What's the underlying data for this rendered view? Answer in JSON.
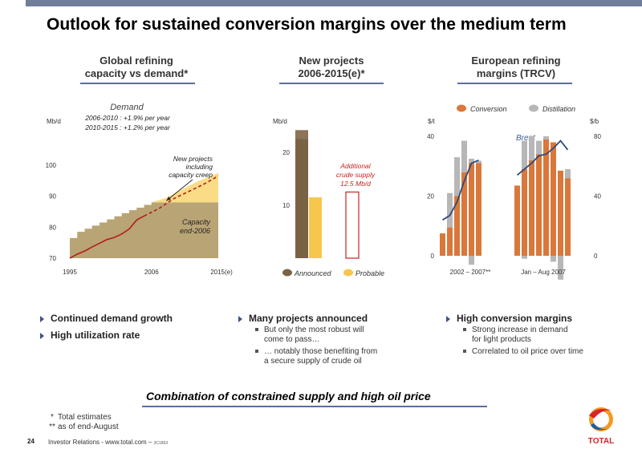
{
  "page": {
    "title": "Outlook for sustained conversion margins over the medium term",
    "page_number": "24",
    "footer": "Investor Relations - www.total.com –",
    "footer_code": "3C1863",
    "logo_text": "TOTAL",
    "accent_color": "#5a6f99"
  },
  "columns": [
    {
      "title_line1": "Global refining",
      "title_line2": "capacity vs demand*"
    },
    {
      "title_line1": "New projects",
      "title_line2": "2006-2015(e)*"
    },
    {
      "title_line1": "European refining",
      "title_line2": "margins (TRCV)"
    }
  ],
  "bullets": {
    "left": [
      "Continued demand growth",
      "High utilization rate"
    ],
    "middle": {
      "heading": "Many projects announced",
      "subs": [
        [
          "But only the most robust will",
          "come to pass…"
        ],
        [
          "… notably those benefiting from",
          "a secure supply of crude oil"
        ]
      ]
    },
    "right": {
      "heading": "High conversion margins",
      "subs": [
        [
          "Strong increase in demand",
          "for light products"
        ],
        [
          "Correlated to oil price over time"
        ]
      ]
    }
  },
  "conclusion": "Combination of constrained supply and high oil price",
  "footnotes": [
    {
      "mark": "*",
      "text": "Total estimates"
    },
    {
      "mark": "**",
      "text": "as of end-August"
    }
  ],
  "chart_data": [
    {
      "type": "area",
      "ylabel": "Mb/d",
      "ylim": [
        70,
        100
      ],
      "yticks": [
        70,
        80,
        90,
        100
      ],
      "xticks": [
        "1995",
        "2006",
        "2015(e)"
      ],
      "capacity_end_2006": 88,
      "annotations": {
        "demand_title": "Demand",
        "demand_line1": "2006-2010 : +1.9% per year",
        "demand_line2": "2010-2015 : +1.2% per year",
        "new_projects": [
          "New projects",
          "including",
          "capacity creep"
        ],
        "capacity": [
          "Capacity",
          "end-2006"
        ]
      },
      "capacity": {
        "x": [
          1995,
          1996,
          1997,
          1998,
          1999,
          2000,
          2001,
          2002,
          2003,
          2004,
          2005,
          2006
        ],
        "values": [
          76.5,
          78.5,
          79.5,
          80.5,
          81.5,
          82.5,
          83.5,
          84.5,
          85.5,
          86.3,
          87.2,
          88.0
        ]
      },
      "capacity_projects": {
        "x": [
          2006,
          2008,
          2010,
          2012,
          2015
        ],
        "values": [
          88.0,
          89.5,
          92.0,
          94.5,
          97.5
        ]
      },
      "demand_actual": {
        "x": [
          1995,
          1996,
          1997,
          1998,
          1999,
          2000,
          2001,
          2002,
          2003,
          2004,
          2005
        ],
        "values": [
          70.0,
          71.3,
          72.3,
          73.6,
          74.8,
          76.0,
          76.7,
          77.8,
          79.4,
          82.3,
          83.6
        ]
      },
      "demand_projection": {
        "x": [
          2005,
          2007,
          2009,
          2011,
          2013,
          2015
        ],
        "values": [
          83.6,
          86.0,
          89.2,
          91.5,
          93.8,
          96.5
        ]
      }
    },
    {
      "type": "bar",
      "ylabel": "Mb/d",
      "ylim": [
        0,
        25
      ],
      "yticks": [
        10,
        20
      ],
      "announced": {
        "base": 22.5,
        "top": 24.2
      },
      "probable": 11.5,
      "additional_supply_label": [
        "Additional",
        "crude supply",
        "12.5 Mb/d"
      ],
      "additional_supply": 12.5,
      "legend": [
        "Announced",
        "Probable"
      ],
      "colors": {
        "announced": "#7a6345",
        "probable": "#f7c64d",
        "additional": "#cc2222"
      }
    },
    {
      "type": "bar",
      "ylabel_left": "$/t",
      "ylabel_right": "$/b",
      "ylim_left": [
        0,
        40
      ],
      "yticks_left": [
        0,
        20,
        40
      ],
      "ylim_right": [
        0,
        80
      ],
      "yticks_right": [
        0,
        40,
        80
      ],
      "xlabels": [
        "2002 – 2007**",
        "Jan – Aug 2007"
      ],
      "legend": [
        "Conversion",
        "Distillation"
      ],
      "line_label": "Brent",
      "colors": {
        "conversion": "#d9783a",
        "distillation": "#b7b7b7",
        "brent": "#2e4a7a"
      },
      "groups": [
        {
          "conversion": [
            7.5,
            9.5,
            20,
            28,
            31,
            31
          ],
          "distillation": [
            0,
            11.5,
            13,
            10.5,
            1.5,
            0.8
          ],
          "distillation_negative": [
            0,
            0,
            0,
            0,
            -3,
            0
          ],
          "brent": [
            24,
            27,
            36,
            50,
            62,
            64
          ]
        },
        {
          "conversion": [
            23.5,
            29,
            32,
            34,
            39,
            38,
            28.5,
            26
          ],
          "distillation": [
            0,
            9.5,
            8,
            4.5,
            1,
            0,
            0,
            3
          ],
          "distillation_negative": [
            0,
            -1,
            0,
            0,
            0,
            -2,
            -8,
            0
          ],
          "brent": [
            54,
            58,
            62,
            67,
            68,
            72,
            77,
            71
          ]
        }
      ]
    }
  ]
}
